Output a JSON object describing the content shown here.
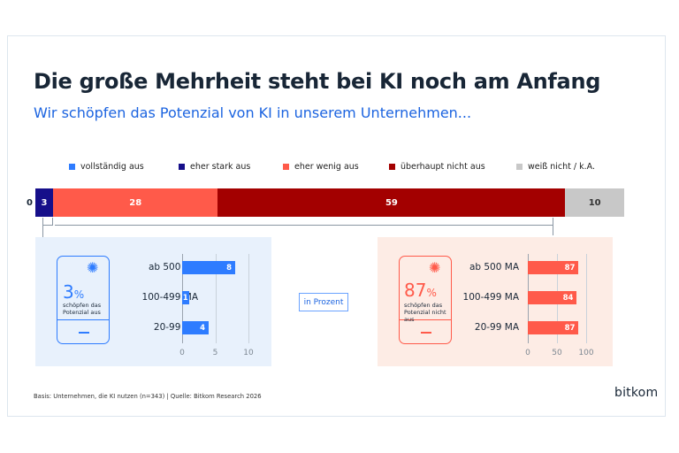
{
  "title": "Die große Mehrheit steht bei KI noch am Anfang",
  "subtitle": "Wir schöpfen das Potenzial von KI in unserem Unternehmen...",
  "legend": [
    {
      "label": "vollständig aus",
      "color": "#2e7cff"
    },
    {
      "label": "eher stark aus",
      "color": "#160f8a"
    },
    {
      "label": "eher wenig aus",
      "color": "#ff5a4a"
    },
    {
      "label": "überhaupt nicht aus",
      "color": "#a30000"
    },
    {
      "label": "weiß nicht / k.A.",
      "color": "#c8c8c8"
    }
  ],
  "left_panel": {
    "big_value": "3",
    "big_unit": "%",
    "caption": "schöpfen das Potenzial aus"
  },
  "right_panel": {
    "big_value": "87",
    "big_unit": "%",
    "caption": "schöpfen das Potenzial nicht aus"
  },
  "unit_box": "in Prozent",
  "footnote": "Basis: Unternehmen, die KI nutzen (n=343) | Quelle: Bitkom Research 2026",
  "logo": "bitkom",
  "chart_data": [
    {
      "type": "bar",
      "orientation": "horizontal-stacked",
      "series": [
        {
          "name": "vollständig aus",
          "values": [
            0
          ],
          "color": "#2e7cff"
        },
        {
          "name": "eher stark aus",
          "values": [
            3
          ],
          "color": "#160f8a"
        },
        {
          "name": "eher wenig aus",
          "values": [
            28
          ],
          "color": "#ff5a4a"
        },
        {
          "name": "überhaupt nicht aus",
          "values": [
            59
          ],
          "color": "#a30000"
        },
        {
          "name": "weiß nicht / k.A.",
          "values": [
            10
          ],
          "color": "#c8c8c8"
        }
      ],
      "xlim": [
        0,
        100
      ]
    },
    {
      "type": "bar",
      "orientation": "horizontal",
      "categories": [
        "ab 500 MA",
        "100-499 MA",
        "20-99 MA"
      ],
      "values": [
        8,
        1,
        4
      ],
      "xlim": [
        0,
        10
      ],
      "xticks": [
        0,
        5,
        10
      ],
      "color": "#2e7cff"
    },
    {
      "type": "bar",
      "orientation": "horizontal",
      "categories": [
        "ab 500 MA",
        "100-499 MA",
        "20-99 MA"
      ],
      "values": [
        87,
        84,
        87
      ],
      "xlim": [
        0,
        100
      ],
      "xticks": [
        0,
        50,
        100
      ],
      "color": "#ff5a4a"
    }
  ]
}
